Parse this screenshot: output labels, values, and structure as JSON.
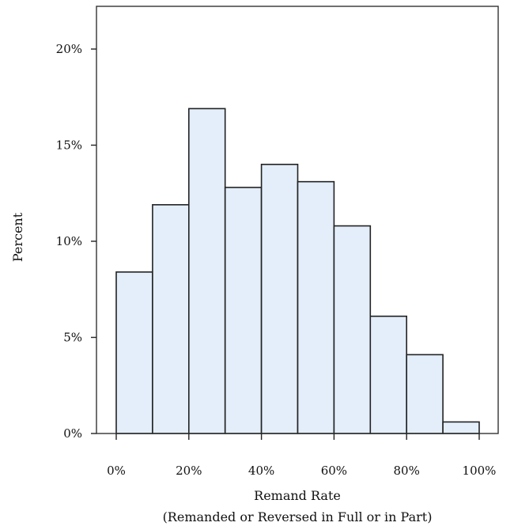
{
  "chart_data": {
    "type": "bar",
    "title": "",
    "ylabel": "Percent",
    "xlabel_line1": "Remand Rate",
    "xlabel_line2": "(Remanded or Reversed in Full or in Part)",
    "ylim": [
      0,
      22
    ],
    "xlim": [
      0,
      100
    ],
    "y_ticks": [
      {
        "value": 0,
        "label": "0%"
      },
      {
        "value": 5,
        "label": "5%"
      },
      {
        "value": 10,
        "label": "10%"
      },
      {
        "value": 15,
        "label": "15%"
      },
      {
        "value": 20,
        "label": "20%"
      }
    ],
    "x_ticks": [
      {
        "value": 0,
        "label": "0%"
      },
      {
        "value": 20,
        "label": "20%"
      },
      {
        "value": 40,
        "label": "40%"
      },
      {
        "value": 60,
        "label": "60%"
      },
      {
        "value": 80,
        "label": "80%"
      },
      {
        "value": 100,
        "label": "100%"
      }
    ],
    "bins": [
      {
        "start": 0,
        "end": 10,
        "value": 8.4
      },
      {
        "start": 10,
        "end": 20,
        "value": 11.9
      },
      {
        "start": 20,
        "end": 30,
        "value": 16.9
      },
      {
        "start": 30,
        "end": 40,
        "value": 12.8
      },
      {
        "start": 40,
        "end": 50,
        "value": 14.0
      },
      {
        "start": 50,
        "end": 60,
        "value": 13.1
      },
      {
        "start": 60,
        "end": 70,
        "value": 10.8
      },
      {
        "start": 70,
        "end": 80,
        "value": 6.1
      },
      {
        "start": 80,
        "end": 90,
        "value": 4.1
      },
      {
        "start": 90,
        "end": 100,
        "value": 0.6
      }
    ],
    "colors": {
      "bar_fill": "#e3eefa",
      "bar_stroke": "#222222"
    },
    "grid": false,
    "legend": "none"
  }
}
